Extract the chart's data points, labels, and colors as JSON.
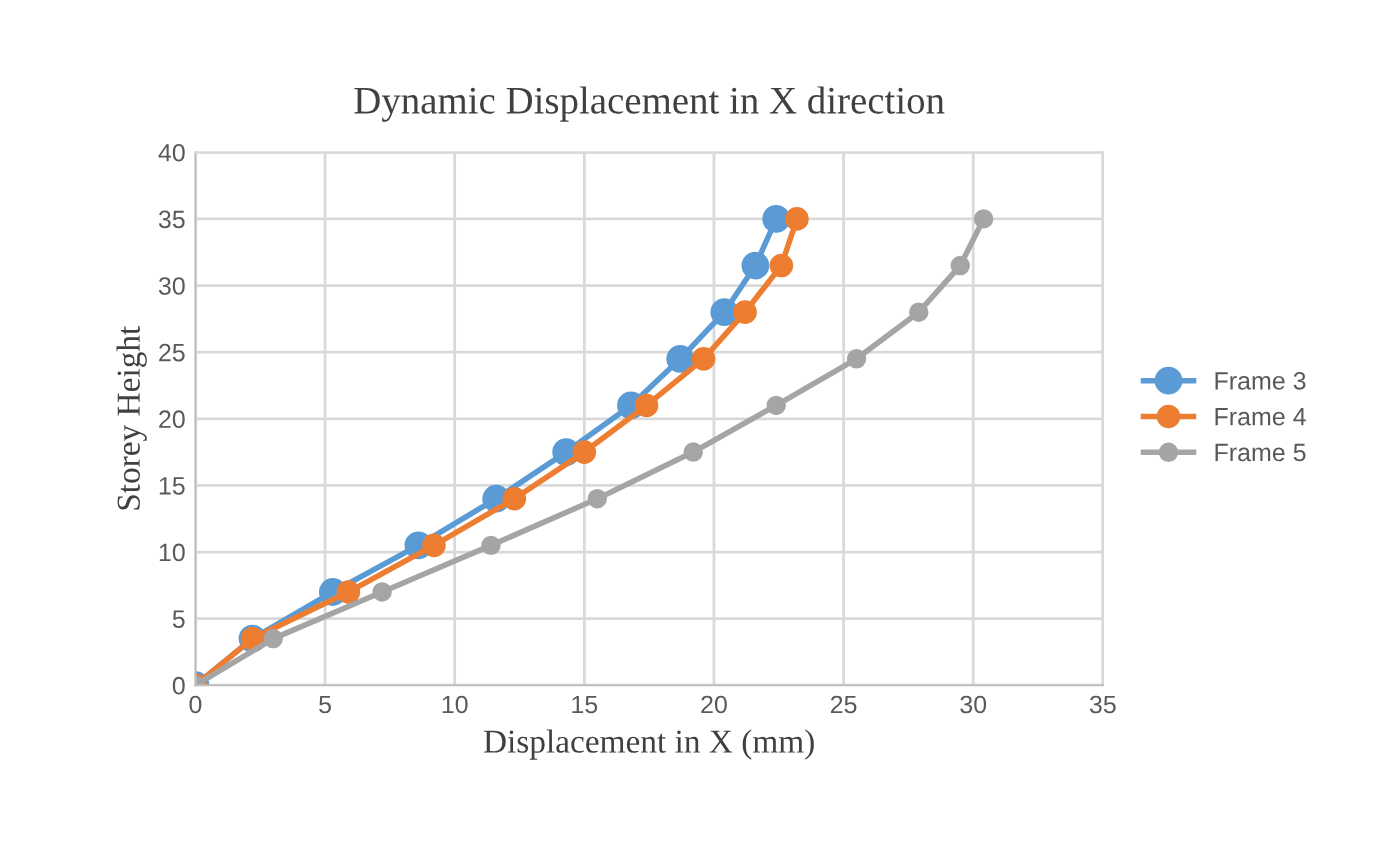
{
  "chart_data": {
    "type": "line",
    "title": "Dynamic Displacement in X direction",
    "xlabel": "Displacement in X (mm)",
    "ylabel": "Storey Height",
    "xlim": [
      0,
      35
    ],
    "xticks": [
      0,
      5,
      10,
      15,
      20,
      25,
      30,
      35
    ],
    "ylim": [
      0,
      40
    ],
    "yticks": [
      0,
      5,
      10,
      15,
      20,
      25,
      30,
      35,
      40
    ],
    "grid": true,
    "legend": "right",
    "marker": "circle",
    "line_style": "solid",
    "series": [
      {
        "name": "Frame 3",
        "color": "#5b9bd5",
        "x": [
          0,
          2.2,
          5.3,
          8.6,
          11.6,
          14.3,
          16.8,
          18.7,
          20.4,
          21.6,
          22.4
        ],
        "values": [
          0,
          3.5,
          7,
          10.5,
          14,
          17.5,
          21,
          24.5,
          28,
          31.5,
          35
        ]
      },
      {
        "name": "Frame 4",
        "color": "#ed7d31",
        "x": [
          0,
          2.2,
          5.9,
          9.2,
          12.3,
          15.0,
          17.4,
          19.6,
          21.2,
          22.6,
          23.2
        ],
        "values": [
          0,
          3.5,
          7,
          10.5,
          14,
          17.5,
          21,
          24.5,
          28,
          31.5,
          35
        ]
      },
      {
        "name": "Frame 5",
        "color": "#a5a5a5",
        "x": [
          0,
          3.0,
          7.2,
          11.4,
          15.5,
          19.2,
          22.4,
          25.5,
          27.9,
          29.5,
          30.4
        ],
        "values": [
          0,
          3.5,
          7,
          10.5,
          14,
          17.5,
          21,
          24.5,
          28,
          31.5,
          35
        ]
      }
    ]
  }
}
